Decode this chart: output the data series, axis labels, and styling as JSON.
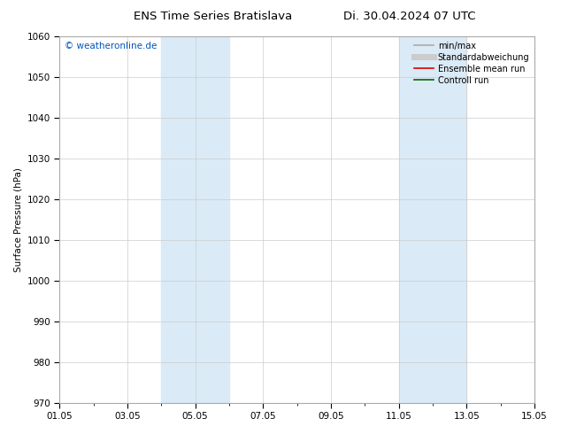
{
  "title_left": "ENS Time Series Bratislava",
  "title_right": "Di. 30.04.2024 07 UTC",
  "ylabel": "Surface Pressure (hPa)",
  "ylim": [
    970,
    1060
  ],
  "yticks": [
    970,
    980,
    990,
    1000,
    1010,
    1020,
    1030,
    1040,
    1050,
    1060
  ],
  "xlim_start": 0,
  "xlim_end": 14,
  "xtick_positions": [
    0,
    2,
    4,
    6,
    8,
    10,
    12,
    14
  ],
  "xtick_labels": [
    "01.05",
    "03.05",
    "05.05",
    "07.05",
    "09.05",
    "11.05",
    "13.05",
    "15.05"
  ],
  "shaded_bands": [
    {
      "xmin": 3,
      "xmax": 5
    },
    {
      "xmin": 10,
      "xmax": 12
    }
  ],
  "shade_color": "#daeaf6",
  "copyright_text": "© weatheronline.de",
  "copyright_color": "#0055bb",
  "copyright_fontsize": 7.5,
  "legend_entries": [
    {
      "label": "min/max",
      "color": "#aaaaaa",
      "lw": 1.2
    },
    {
      "label": "Standardabweichung",
      "color": "#cccccc",
      "lw": 5
    },
    {
      "label": "Ensemble mean run",
      "color": "#dd0000",
      "lw": 1.2
    },
    {
      "label": "Controll run",
      "color": "#006600",
      "lw": 1.2
    }
  ],
  "bg_color": "#ffffff",
  "grid_color": "#cccccc",
  "title_fontsize": 9.5,
  "axis_fontsize": 7.5,
  "tick_fontsize": 7.5,
  "legend_fontsize": 7
}
